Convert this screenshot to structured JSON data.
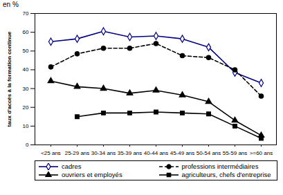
{
  "chart_data": {
    "type": "line",
    "subtitle": "en %",
    "y_label": "taux d'accès à la formation continue",
    "categories": [
      "<25 ans",
      "25-29 ans",
      "30-34 ans",
      "35-39 ans",
      "40-44 ans",
      "45-49 ans",
      "50-54 ans",
      "55-59 ans",
      ">=60 ans"
    ],
    "series": [
      {
        "name": "cadres",
        "color": "#000080",
        "marker": "diamond",
        "line_style": "solid",
        "values": [
          55,
          56.5,
          60.5,
          57.5,
          58,
          56.5,
          52,
          38.5,
          33
        ]
      },
      {
        "name": "professions intermédiaires",
        "color": "#000000",
        "marker": "circle",
        "line_style": "dashed",
        "values": [
          41.5,
          48.5,
          51.5,
          51.5,
          54,
          47.5,
          46.5,
          40,
          26
        ]
      },
      {
        "name": "ouvriers et employés",
        "color": "#000000",
        "marker": "triangle",
        "line_style": "solid",
        "values": [
          34,
          31,
          30,
          27.5,
          29,
          26.5,
          23,
          13,
          5
        ]
      },
      {
        "name": "agriculteurs, chefs d'entreprise",
        "color": "#000000",
        "marker": "square",
        "line_style": "solid",
        "values": [
          null,
          15,
          17,
          17,
          17.5,
          17,
          16.5,
          10,
          3.5
        ]
      }
    ],
    "ylim": [
      0,
      70
    ],
    "yticks": [
      0,
      10,
      20,
      30,
      40,
      50,
      60,
      70
    ],
    "grid": false,
    "legend": "bottom"
  }
}
